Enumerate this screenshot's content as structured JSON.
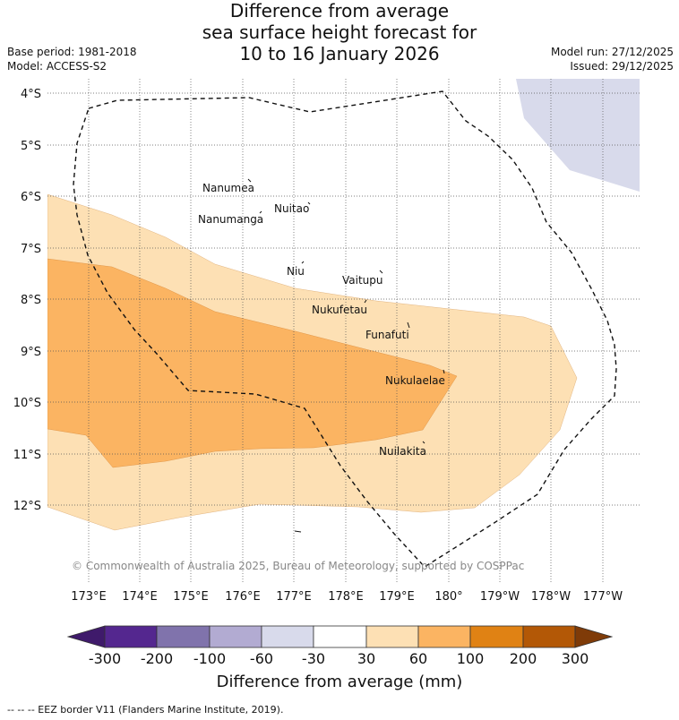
{
  "title": {
    "line1": "Difference from average",
    "line2": "sea surface height forecast for",
    "line3": "10 to 16 January 2026"
  },
  "meta": {
    "base_period": "Base period: 1981-2018",
    "model": "Model: ACCESS-S2",
    "model_run": "Model run: 27/12/2025",
    "issued": "Issued: 29/12/2025"
  },
  "axes": {
    "lat_labels": [
      "4°S",
      "5°S",
      "6°S",
      "7°S",
      "8°S",
      "9°S",
      "10°S",
      "11°S",
      "12°S"
    ],
    "lon_labels": [
      "173°E",
      "174°E",
      "175°E",
      "176°E",
      "177°E",
      "178°E",
      "179°E",
      "180°",
      "179°W",
      "178°W",
      "177°W"
    ]
  },
  "islands": [
    {
      "name": "Nanumea"
    },
    {
      "name": "Nuitao"
    },
    {
      "name": "Nanumanga"
    },
    {
      "name": "Niu"
    },
    {
      "name": "Vaitupu"
    },
    {
      "name": "Nukufetau"
    },
    {
      "name": "Funafuti"
    },
    {
      "name": "Nukulaelae"
    },
    {
      "name": "Nuilakita"
    }
  ],
  "copyright": "© Commonwealth of Australia 2025, Bureau of Meteorology, supported by COSPPac",
  "colorbar": {
    "title": "Difference from average (mm)",
    "ticks": [
      "-300",
      "-200",
      "-100",
      "-60",
      "-30",
      "30",
      "60",
      "100",
      "200",
      "300"
    ],
    "colors": [
      "#3f1a6b",
      "#54278f",
      "#8073ac",
      "#b2abd2",
      "#d8daeb",
      "#ffffff",
      "#fde0b4",
      "#fbb462",
      "#e08214",
      "#b35806",
      "#7f3b08"
    ]
  },
  "footer": "-- -- -- EEZ border V11 (Flanders Marine Institute, 2019)."
}
